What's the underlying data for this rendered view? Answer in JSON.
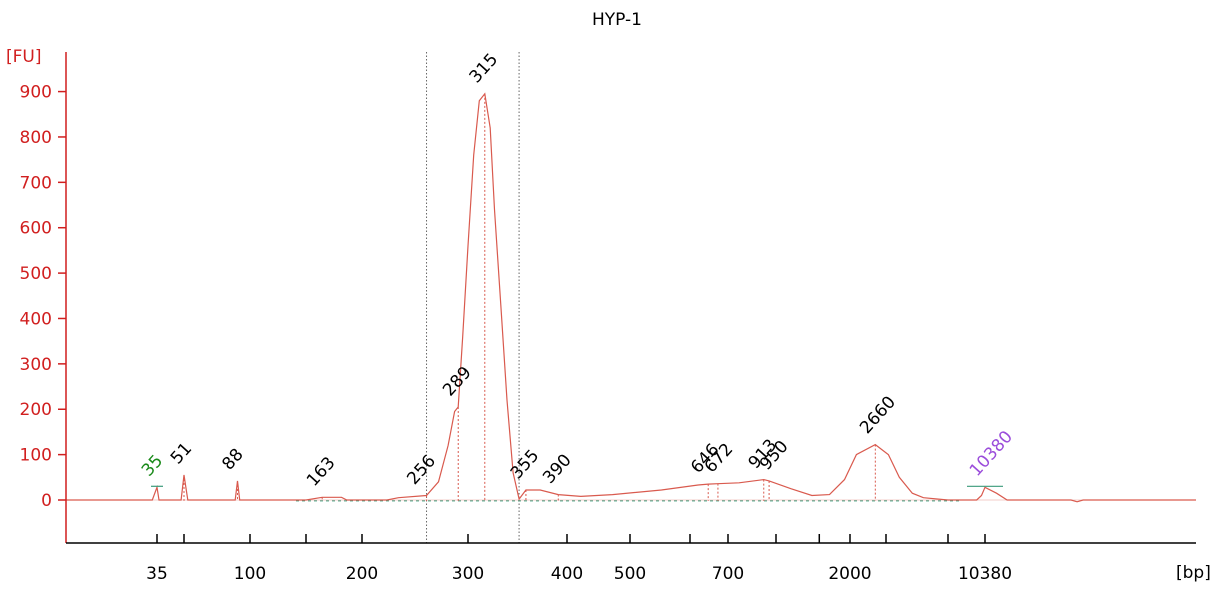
{
  "chart_data": {
    "type": "line",
    "title": "HYP-1",
    "ylabel": "[FU]",
    "xlabel": "[bp]",
    "ylim": [
      -80,
      980
    ],
    "y_ticks": [
      "0",
      "100",
      "200",
      "300",
      "400",
      "500",
      "600",
      "700",
      "800",
      "900"
    ],
    "x_ticks": [
      "35",
      "100",
      "200",
      "300",
      "400",
      "500",
      "700",
      "2000",
      "10380"
    ],
    "x_ticks_unlabeled": [
      "51",
      "150",
      "600",
      "1000",
      "1500",
      "3000",
      "7000"
    ],
    "series": [
      {
        "color": "#d95a4e",
        "points": [
          [
            20,
            0
          ],
          [
            34,
            0
          ],
          [
            35,
            28
          ],
          [
            36,
            0
          ],
          [
            49,
            0
          ],
          [
            51,
            55
          ],
          [
            53,
            0
          ],
          [
            86,
            0
          ],
          [
            88,
            42
          ],
          [
            90,
            0
          ],
          [
            150,
            0
          ],
          [
            163,
            6
          ],
          [
            180,
            6
          ],
          [
            185,
            0
          ],
          [
            220,
            0
          ],
          [
            230,
            5
          ],
          [
            256,
            10
          ],
          [
            268,
            40
          ],
          [
            278,
            120
          ],
          [
            285,
            195
          ],
          [
            289,
            205
          ],
          [
            294,
            360
          ],
          [
            300,
            560
          ],
          [
            305,
            760
          ],
          [
            310,
            880
          ],
          [
            315,
            895
          ],
          [
            320,
            820
          ],
          [
            324,
            640
          ],
          [
            330,
            430
          ],
          [
            336,
            220
          ],
          [
            342,
            60
          ],
          [
            348,
            2
          ],
          [
            355,
            22
          ],
          [
            370,
            22
          ],
          [
            390,
            12
          ],
          [
            420,
            8
          ],
          [
            470,
            12
          ],
          [
            550,
            22
          ],
          [
            620,
            33
          ],
          [
            646,
            35
          ],
          [
            672,
            36
          ],
          [
            760,
            38
          ],
          [
            913,
            45
          ],
          [
            950,
            42
          ],
          [
            1150,
            25
          ],
          [
            1400,
            10
          ],
          [
            1650,
            12
          ],
          [
            1900,
            45
          ],
          [
            2150,
            100
          ],
          [
            2660,
            122
          ],
          [
            3100,
            100
          ],
          [
            3600,
            50
          ],
          [
            4300,
            15
          ],
          [
            5000,
            5
          ],
          [
            7000,
            0
          ],
          [
            9500,
            0
          ],
          [
            10000,
            10
          ],
          [
            10380,
            28
          ],
          [
            11000,
            15
          ],
          [
            11600,
            0
          ],
          [
            16000,
            0
          ],
          [
            16500,
            -4
          ],
          [
            17000,
            0
          ],
          [
            30000,
            0
          ]
        ]
      }
    ],
    "peaks": [
      {
        "label": "35",
        "x": 35,
        "y": 28,
        "kind": "lower-marker"
      },
      {
        "label": "51",
        "x": 51,
        "y": 55
      },
      {
        "label": "88",
        "x": 88,
        "y": 42
      },
      {
        "label": "163",
        "x": 163,
        "y": 6
      },
      {
        "label": "256",
        "x": 256,
        "y": 10
      },
      {
        "label": "289",
        "x": 289,
        "y": 205
      },
      {
        "label": "315",
        "x": 315,
        "y": 895
      },
      {
        "label": "355",
        "x": 355,
        "y": 22
      },
      {
        "label": "390",
        "x": 390,
        "y": 12
      },
      {
        "label": "646",
        "x": 646,
        "y": 35
      },
      {
        "label": "672",
        "x": 672,
        "y": 36
      },
      {
        "label": "913",
        "x": 913,
        "y": 45
      },
      {
        "label": "950",
        "x": 950,
        "y": 42
      },
      {
        "label": "2660",
        "x": 2660,
        "y": 122
      },
      {
        "label": "10380",
        "x": 10380,
        "y": 28,
        "kind": "upper-marker"
      }
    ],
    "region_bounds_bp": [
      256,
      348
    ],
    "colors": {
      "axis": "#d11f1f",
      "trace": "#d95a4e",
      "baseline": "#3a9a7a",
      "lower_marker": "#1a8a1a",
      "upper_marker": "#9b4ddb"
    }
  }
}
